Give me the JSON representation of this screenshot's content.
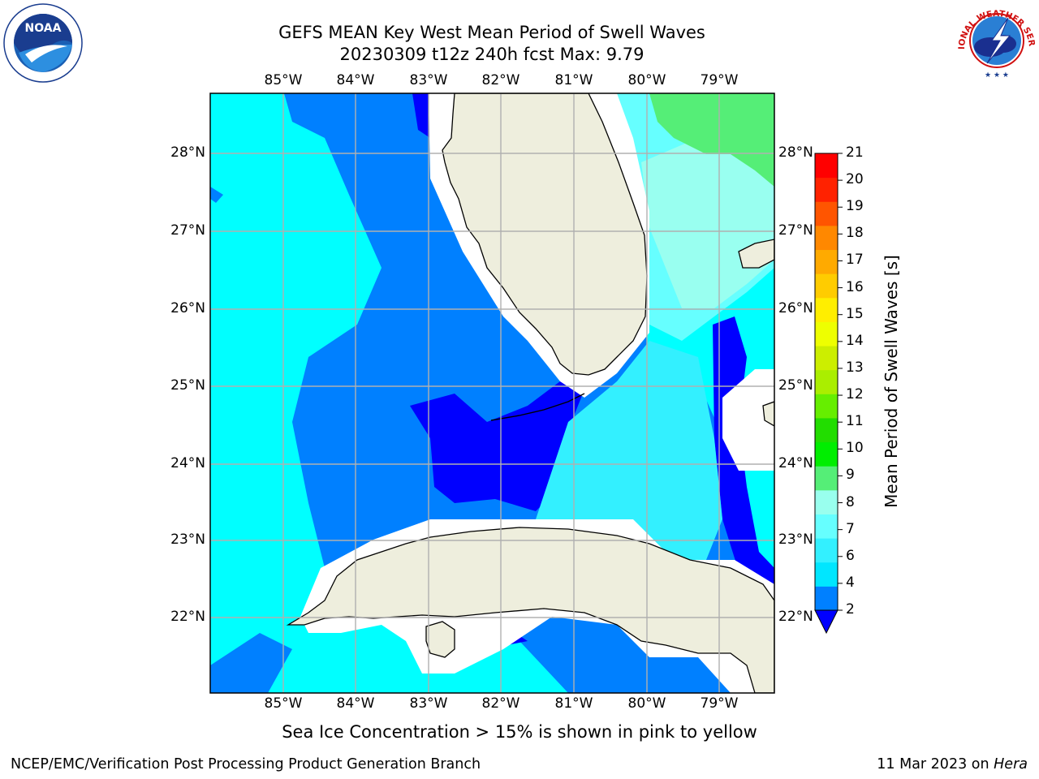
{
  "header": {
    "title_line1": "GEFS MEAN Key West Mean Period of Swell Waves",
    "title_line2": "20230309 t12z 240h fcst   Max: 9.79"
  },
  "logos": {
    "noaa_text": "NOAA",
    "noaa_ring": "NATIONAL OCEANIC AND ATMOSPHERIC ADMINISTRATION · U.S. DEPARTMENT OF COMMERCE",
    "nws_ring": "NATIONAL WEATHER SERVICE"
  },
  "map": {
    "lon_labels": [
      "85°W",
      "84°W",
      "83°W",
      "82°W",
      "81°W",
      "80°W",
      "79°W"
    ],
    "lat_labels": [
      "28°N",
      "27°N",
      "26°N",
      "25°N",
      "24°N",
      "23°N",
      "22°N"
    ],
    "lon_range": [
      -86.0,
      -78.3
    ],
    "lat_range": [
      21.0,
      28.75
    ],
    "gridlines": true,
    "colors": {
      "land": "#eeeedd",
      "no_data": "#ffffff",
      "grid": "#b0b0b0",
      "coast": "#000000"
    }
  },
  "colorbar": {
    "label": "Mean Period of Swell Waves [s]",
    "ticks": [
      "2",
      "4",
      "6",
      "7",
      "8",
      "9",
      "10",
      "11",
      "12",
      "13",
      "14",
      "15",
      "16",
      "17",
      "18",
      "19",
      "20",
      "21"
    ],
    "colors": [
      "#0080ff",
      "#00e6ff",
      "#33f0ff",
      "#66ffff",
      "#99ffee",
      "#55ee77",
      "#00ee00",
      "#22dd00",
      "#66ee00",
      "#aaee00",
      "#ccee00",
      "#eeff00",
      "#ffee00",
      "#ffcc00",
      "#ffaa00",
      "#ff8800",
      "#ff5500",
      "#ff2200",
      "#ff0000"
    ],
    "extend_low_color": "#0000ff"
  },
  "footer": {
    "sea_ice_note": "Sea Ice Concentration > 15% is shown in pink to yellow",
    "left": "NCEP/EMC/Verification Post Processing Product Generation Branch",
    "right_prefix": "11 Mar 2023 on ",
    "right_host": "Hera"
  }
}
